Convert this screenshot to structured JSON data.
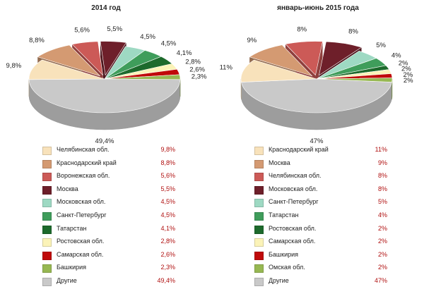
{
  "chart_data": [
    {
      "type": "pie",
      "title": "2014 год",
      "categories": [
        "Челябинская обл.",
        "Краснодарский край",
        "Воронежская обл.",
        "Москва",
        "Московская обл.",
        "Санкт-Петербург",
        "Татарстан",
        "Ростовская обл.",
        "Самарская обл.",
        "Башкирия",
        "Другие"
      ],
      "values": [
        9.8,
        8.8,
        5.6,
        5.5,
        4.5,
        4.5,
        4.1,
        2.8,
        2.6,
        2.3,
        49.4
      ],
      "value_labels": [
        "9,8%",
        "8,8%",
        "5,6%",
        "5,5%",
        "4,5%",
        "4,5%",
        "4,1%",
        "2,8%",
        "2,6%",
        "2,3%",
        "49,4%"
      ],
      "colors": [
        "#f8e2bb",
        "#d49a72",
        "#cc5a57",
        "#6e1f2a",
        "#9ed9c3",
        "#3f9d5b",
        "#1d6a2c",
        "#fbf3b8",
        "#c00a0a",
        "#97b852",
        "#c9c9c9"
      ],
      "exploded": [
        1,
        2,
        3
      ],
      "legend_position": "bottom"
    },
    {
      "type": "pie",
      "title": "январь-июнь 2015 года",
      "categories": [
        "Краснодарский край",
        "Москва",
        "Челябинская обл.",
        "Московская обл.",
        "Санкт-Петербург",
        "Татарстан",
        "Ростовская обл.",
        "Самарская обл.",
        "Башкирия",
        "Омская обл.",
        "Другие"
      ],
      "values": [
        11,
        9,
        8,
        8,
        5,
        4,
        2,
        2,
        2,
        2,
        47
      ],
      "value_labels": [
        "11%",
        "9%",
        "8%",
        "8%",
        "5%",
        "4%",
        "2%",
        "2%",
        "2%",
        "2%",
        "47%"
      ],
      "colors": [
        "#f8e2bb",
        "#d49a72",
        "#cc5a57",
        "#6e1f2a",
        "#9ed9c3",
        "#3f9d5b",
        "#1d6a2c",
        "#fbf3b8",
        "#c00a0a",
        "#97b852",
        "#c9c9c9"
      ],
      "exploded": [
        1,
        2,
        3
      ],
      "legend_position": "bottom"
    }
  ]
}
